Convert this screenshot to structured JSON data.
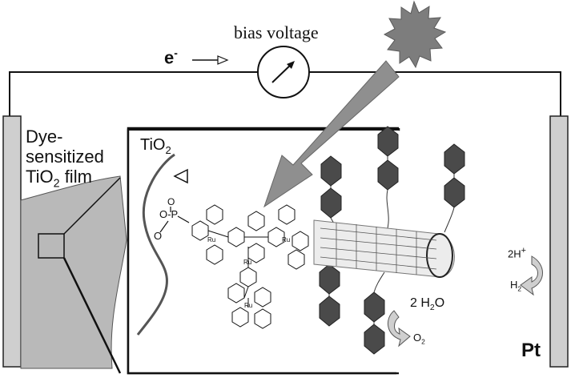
{
  "labels": {
    "bias_voltage": "bias voltage",
    "electron": "e",
    "electron_sup": "-",
    "dye_film_line1": "Dye-",
    "dye_film_line2": "sensitized",
    "dye_film_line3_pre": "TiO",
    "dye_film_line3_sub": "2",
    "dye_film_line3_post": " film",
    "tio2_main": "TiO",
    "tio2_sub": "2",
    "pt": "Pt",
    "h_plus_pre": "2H",
    "h_plus_sup": "+",
    "h2_pre": "H",
    "h2_sub": "2",
    "water": "2 H",
    "water_sub": "2",
    "water_post": "O",
    "o2_pre": "O",
    "o2_sub": "2"
  },
  "colors": {
    "electrode": "#cfcfcf",
    "film": "#b9b9b9",
    "arrow": "#8f8f8f",
    "sun": "#7d7d7d",
    "line": "#111111"
  },
  "icons": [
    "sun-icon",
    "voltmeter-icon",
    "light-arrow-icon",
    "nanotube-icon",
    "polyoxometalate-icon",
    "ruthenium-dye-icon"
  ]
}
